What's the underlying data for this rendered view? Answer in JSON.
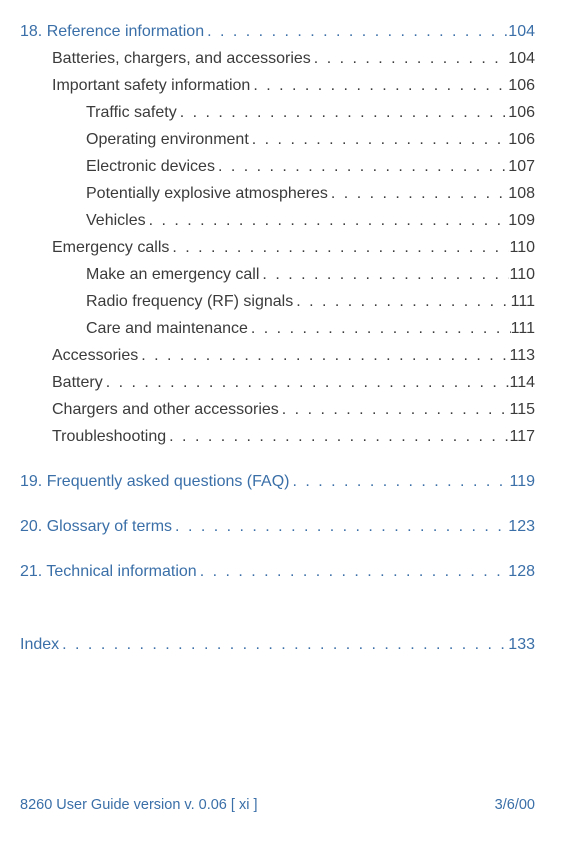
{
  "colors": {
    "chapter": "#3a6fa8",
    "body": "#3b3b3b",
    "footer": "#3a6fa8",
    "background": "#ffffff"
  },
  "typography": {
    "body_fontsize": 16,
    "line_height": 27,
    "footer_fontsize": 14.5,
    "font_family": "Verdana, Geneva, sans-serif"
  },
  "toc": [
    {
      "level": "chapter",
      "label": "18. Reference information",
      "page": "104",
      "gap": "none"
    },
    {
      "level": "level1",
      "label": "Batteries, chargers, and accessories",
      "page": "104",
      "gap": "none"
    },
    {
      "level": "level1",
      "label": "Important safety information",
      "page": "106",
      "gap": "none"
    },
    {
      "level": "level2",
      "label": "Traffic safety",
      "page": "106",
      "gap": "none"
    },
    {
      "level": "level2",
      "label": "Operating environment",
      "page": "106",
      "gap": "none"
    },
    {
      "level": "level2",
      "label": "Electronic devices",
      "page": "107",
      "gap": "none"
    },
    {
      "level": "level2",
      "label": "Potentially explosive atmospheres",
      "page": "108",
      "gap": "none"
    },
    {
      "level": "level2",
      "label": "Vehicles",
      "page": "109",
      "gap": "none"
    },
    {
      "level": "level1",
      "label": "Emergency calls",
      "page": "110",
      "gap": "none"
    },
    {
      "level": "level2",
      "label": "Make an emergency call",
      "page": "110",
      "gap": "none"
    },
    {
      "level": "level2",
      "label": "Radio frequency (RF) signals",
      "page": "111",
      "gap": "none"
    },
    {
      "level": "level2",
      "label": "Care and maintenance",
      "page": "111",
      "gap": "none"
    },
    {
      "level": "level1",
      "label": "Accessories",
      "page": "113",
      "gap": "none"
    },
    {
      "level": "level1",
      "label": "Battery",
      "page": "114",
      "gap": "none"
    },
    {
      "level": "level1",
      "label": "Chargers and other accessories",
      "page": "115",
      "gap": "none"
    },
    {
      "level": "level1",
      "label": "Troubleshooting",
      "page": "117",
      "gap": "none"
    },
    {
      "level": "chapter",
      "label": "19. Frequently asked questions (FAQ)",
      "page": "119",
      "gap": "gap-before"
    },
    {
      "level": "chapter",
      "label": "20. Glossary of terms",
      "page": "123",
      "gap": "gap-before"
    },
    {
      "level": "chapter",
      "label": "21. Technical information",
      "page": "128",
      "gap": "gap-before"
    },
    {
      "level": "chapter",
      "label": "Index",
      "page": "133",
      "gap": "big-gap-before"
    }
  ],
  "footer": {
    "left": "8260 User Guide version v. 0.06 [ xi ]",
    "right": "3/6/00"
  }
}
